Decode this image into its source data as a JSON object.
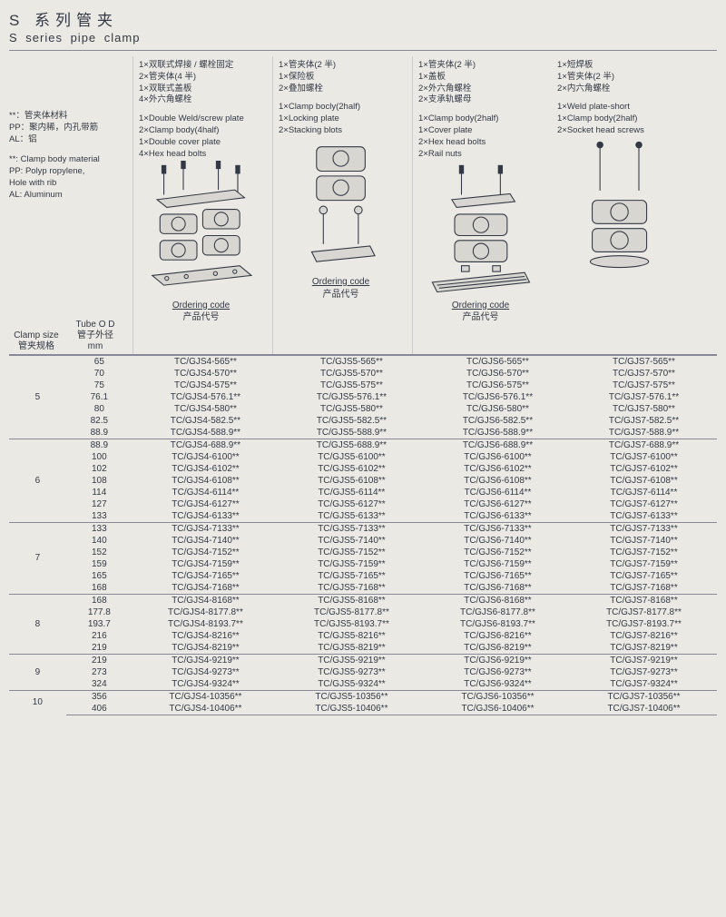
{
  "title_cn": "S 系列管夹",
  "title_en": "S series pipe clamp",
  "legend": {
    "cn": [
      "**：管夹体材料",
      "PP：聚内稀，内孔带筋",
      "AL：铝"
    ],
    "en": [
      "**: Clamp body material",
      "PP: Polyp ropylene,",
      "  Hole with rib",
      "AL: Aluminum"
    ]
  },
  "leftHead": {
    "size_en": "Clamp size",
    "size_cn": "管夹规格",
    "tube_en": "Tube O D",
    "tube_cn": "管子外径",
    "unit": "mm"
  },
  "columns": [
    {
      "desc_cn": [
        "1×双联式焊接 / 螺栓固定",
        "2×管夹体(4 半)",
        "1×双联式盖板",
        "4×外六角螺栓"
      ],
      "desc_en": [
        "1×Double Weld/screw plate",
        "2×Clamp body(4half)",
        "1×Double cover plate",
        "4×Hex head bolts"
      ],
      "ord_en": "Ordering code",
      "ord_cn": "产品代号",
      "prefix": "TC/GJS4-"
    },
    {
      "desc_cn": [
        "1×管夹体(2 半)",
        "1×保险板",
        "2×叠加螺栓"
      ],
      "desc_en": [
        "1×Clamp bocly(2half)",
        "1×Locking plate",
        "2×Stacking blots"
      ],
      "ord_en": "Ordering code",
      "ord_cn": "产品代号",
      "prefix": "TC/GJS5-"
    },
    {
      "desc_cn": [
        "1×管夹体(2 半)",
        "1×盖板",
        "2×外六角螺栓",
        "2×支承轨螺母"
      ],
      "desc_en": [
        "1×Clamp body(2half)",
        "1×Cover plate",
        "2×Hex head bolts",
        "2×Rail nuts"
      ],
      "ord_en": "Ordering code",
      "ord_cn": "产品代号",
      "prefix": "TC/GJS6-"
    },
    {
      "desc_cn": [
        "1×短焊板",
        "1×管夹体(2 半)",
        "2×内六角螺栓"
      ],
      "desc_en": [
        "1×Weld plate-short",
        "1×Clamp body(2half)",
        "2×Socket head screws"
      ],
      "ord_en": "",
      "ord_cn": "",
      "prefix": "TC/GJS7-"
    }
  ],
  "groups": [
    {
      "size": "5",
      "rows": [
        {
          "od": "65",
          "s": "565"
        },
        {
          "od": "70",
          "s": "570"
        },
        {
          "od": "75",
          "s": "575"
        },
        {
          "od": "76.1",
          "s": "576.1"
        },
        {
          "od": "80",
          "s": "580"
        },
        {
          "od": "82.5",
          "s": "582.5"
        },
        {
          "od": "88.9",
          "s": "588.9"
        }
      ]
    },
    {
      "size": "6",
      "rows": [
        {
          "od": "88.9",
          "s": "688.9"
        },
        {
          "od": "100",
          "s": "6100"
        },
        {
          "od": "102",
          "s": "6102"
        },
        {
          "od": "108",
          "s": "6108"
        },
        {
          "od": "114",
          "s": "6114"
        },
        {
          "od": "127",
          "s": "6127"
        },
        {
          "od": "133",
          "s": "6133"
        }
      ]
    },
    {
      "size": "7",
      "rows": [
        {
          "od": "133",
          "s": "7133"
        },
        {
          "od": "140",
          "s": "7140"
        },
        {
          "od": "152",
          "s": "7152"
        },
        {
          "od": "159",
          "s": "7159"
        },
        {
          "od": "165",
          "s": "7165"
        },
        {
          "od": "168",
          "s": "7168"
        }
      ]
    },
    {
      "size": "8",
      "rows": [
        {
          "od": "168",
          "s": "8168"
        },
        {
          "od": "177.8",
          "s": "8177.8"
        },
        {
          "od": "193.7",
          "s": "8193.7"
        },
        {
          "od": "216",
          "s": "8216"
        },
        {
          "od": "219",
          "s": "8219"
        }
      ]
    },
    {
      "size": "9",
      "rows": [
        {
          "od": "219",
          "s": "9219"
        },
        {
          "od": "273",
          "s": "9273"
        },
        {
          "od": "324",
          "s": "9324"
        }
      ]
    },
    {
      "size": "10",
      "rows": [
        {
          "od": "356",
          "s": "10356"
        },
        {
          "od": "406",
          "s": "10406"
        }
      ]
    }
  ],
  "colors": {
    "line": "#323845",
    "fill": "#d8d6d0"
  }
}
